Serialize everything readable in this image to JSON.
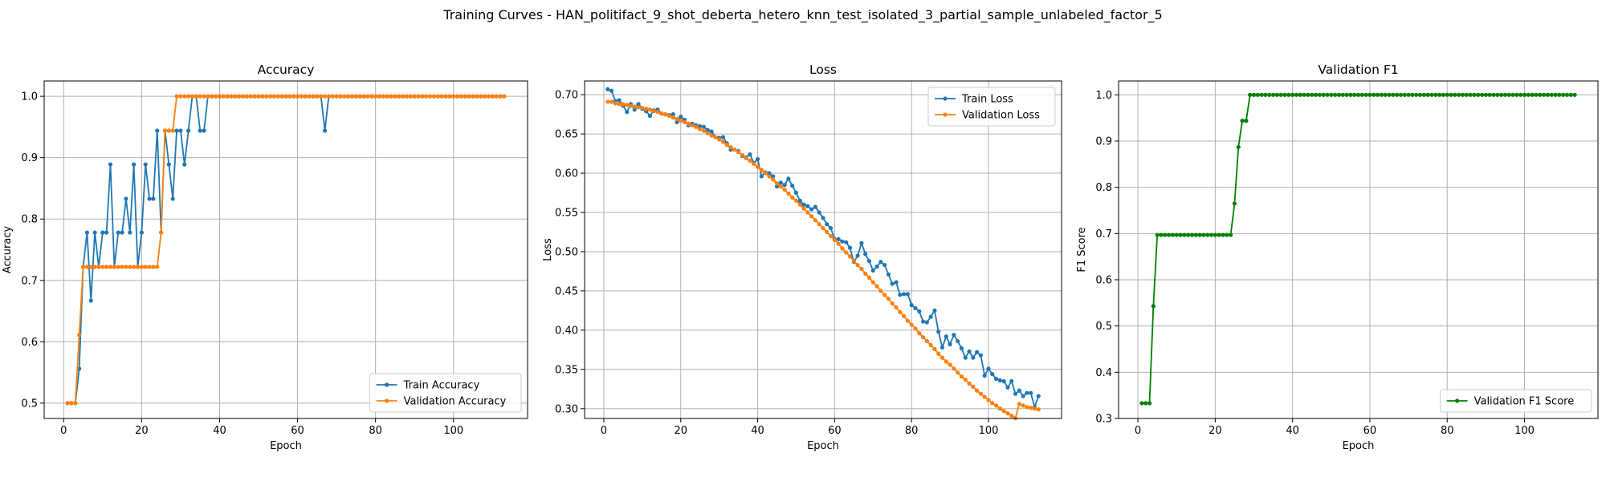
{
  "figure": {
    "suptitle": "Training Curves - HAN_politifact_9_shot_deberta_hetero_knn_test_isolated_3_partial_sample_unlabeled_factor_5"
  },
  "colors": {
    "train": "#1f77b4",
    "validation": "#ff7f0e",
    "f1": "#008000",
    "grid": "#b0b0b0"
  },
  "chart_data": [
    {
      "type": "line",
      "title": "Accuracy",
      "xlabel": "Epoch",
      "ylabel": "Accuracy",
      "xlim": [
        -5,
        119
      ],
      "ylim": [
        0.475,
        1.025
      ],
      "xticks": [
        0,
        20,
        40,
        60,
        80,
        100
      ],
      "yticks": [
        0.5,
        0.6,
        0.7,
        0.8,
        0.9,
        1.0
      ],
      "ytick_labels": [
        "0.5",
        "0.6",
        "0.7",
        "0.8",
        "0.9",
        "1.0"
      ],
      "grid": true,
      "legend_loc": "lower-right",
      "x_start": 1,
      "series": [
        {
          "name": "Train Accuracy",
          "color": "#1f77b4",
          "values": [
            0.5,
            0.5,
            0.5,
            0.556,
            0.722,
            0.778,
            0.667,
            0.778,
            0.722,
            0.778,
            0.778,
            0.889,
            0.722,
            0.778,
            0.778,
            0.833,
            0.778,
            0.889,
            0.722,
            0.778,
            0.889,
            0.833,
            0.833,
            0.944,
            0.778,
            0.944,
            0.889,
            0.833,
            0.944,
            0.944,
            0.889,
            0.944,
            1.0,
            1.0,
            0.944,
            0.944,
            1.0,
            1.0,
            1.0,
            1.0,
            1.0,
            1.0,
            1.0,
            1.0,
            1.0,
            1.0,
            1.0,
            1.0,
            1.0,
            1.0,
            1.0,
            1.0,
            1.0,
            1.0,
            1.0,
            1.0,
            1.0,
            1.0,
            1.0,
            1.0,
            1.0,
            1.0,
            1.0,
            1.0,
            1.0,
            1.0,
            0.944,
            1.0,
            1.0,
            1.0,
            1.0,
            1.0,
            1.0,
            1.0,
            1.0,
            1.0,
            1.0,
            1.0,
            1.0,
            1.0,
            1.0,
            1.0,
            1.0,
            1.0,
            1.0,
            1.0,
            1.0,
            1.0,
            1.0,
            1.0,
            1.0,
            1.0,
            1.0,
            1.0,
            1.0,
            1.0,
            1.0,
            1.0,
            1.0,
            1.0,
            1.0,
            1.0,
            1.0,
            1.0,
            1.0,
            1.0,
            1.0,
            1.0,
            1.0,
            1.0,
            1.0,
            1.0,
            1.0
          ]
        },
        {
          "name": "Validation Accuracy",
          "color": "#ff7f0e",
          "values": [
            0.5,
            0.5,
            0.5,
            0.611,
            0.722,
            0.722,
            0.722,
            0.722,
            0.722,
            0.722,
            0.722,
            0.722,
            0.722,
            0.722,
            0.722,
            0.722,
            0.722,
            0.722,
            0.722,
            0.722,
            0.722,
            0.722,
            0.722,
            0.722,
            0.778,
            0.944,
            0.944,
            0.944,
            1.0,
            1.0,
            1.0,
            1.0,
            1.0,
            1.0,
            1.0,
            1.0,
            1.0,
            1.0,
            1.0,
            1.0,
            1.0,
            1.0,
            1.0,
            1.0,
            1.0,
            1.0,
            1.0,
            1.0,
            1.0,
            1.0,
            1.0,
            1.0,
            1.0,
            1.0,
            1.0,
            1.0,
            1.0,
            1.0,
            1.0,
            1.0,
            1.0,
            1.0,
            1.0,
            1.0,
            1.0,
            1.0,
            1.0,
            1.0,
            1.0,
            1.0,
            1.0,
            1.0,
            1.0,
            1.0,
            1.0,
            1.0,
            1.0,
            1.0,
            1.0,
            1.0,
            1.0,
            1.0,
            1.0,
            1.0,
            1.0,
            1.0,
            1.0,
            1.0,
            1.0,
            1.0,
            1.0,
            1.0,
            1.0,
            1.0,
            1.0,
            1.0,
            1.0,
            1.0,
            1.0,
            1.0,
            1.0,
            1.0,
            1.0,
            1.0,
            1.0,
            1.0,
            1.0,
            1.0,
            1.0,
            1.0,
            1.0,
            1.0,
            1.0
          ]
        }
      ]
    },
    {
      "type": "line",
      "title": "Loss",
      "xlabel": "Epoch",
      "ylabel": "Loss",
      "xlim": [
        -5,
        119
      ],
      "ylim": [
        0.2875,
        0.7175
      ],
      "xticks": [
        0,
        20,
        40,
        60,
        80,
        100
      ],
      "yticks": [
        0.3,
        0.35,
        0.4,
        0.45,
        0.5,
        0.55,
        0.6,
        0.65,
        0.7
      ],
      "ytick_labels": [
        "0.30",
        "0.35",
        "0.40",
        "0.45",
        "0.50",
        "0.55",
        "0.60",
        "0.65",
        "0.70"
      ],
      "grid": true,
      "legend_loc": "upper-right",
      "x_start": 1,
      "series": [
        {
          "name": "Train Loss",
          "color": "#1f77b4",
          "values": [
            0.707,
            0.705,
            0.692,
            0.693,
            0.686,
            0.678,
            0.688,
            0.681,
            0.688,
            0.682,
            0.679,
            0.673,
            0.68,
            0.681,
            0.676,
            0.675,
            0.674,
            0.675,
            0.665,
            0.672,
            0.668,
            0.661,
            0.663,
            0.661,
            0.66,
            0.659,
            0.655,
            0.653,
            0.646,
            0.645,
            0.646,
            0.638,
            0.63,
            0.63,
            0.628,
            0.622,
            0.62,
            0.624,
            0.613,
            0.618,
            0.596,
            0.601,
            0.6,
            0.596,
            0.583,
            0.588,
            0.585,
            0.593,
            0.584,
            0.575,
            0.565,
            0.56,
            0.558,
            0.554,
            0.557,
            0.55,
            0.543,
            0.535,
            0.53,
            0.516,
            0.516,
            0.513,
            0.512,
            0.505,
            0.487,
            0.495,
            0.511,
            0.497,
            0.488,
            0.476,
            0.481,
            0.487,
            0.483,
            0.471,
            0.459,
            0.461,
            0.445,
            0.446,
            0.446,
            0.432,
            0.428,
            0.424,
            0.411,
            0.41,
            0.417,
            0.425,
            0.398,
            0.378,
            0.392,
            0.382,
            0.394,
            0.386,
            0.377,
            0.365,
            0.373,
            0.365,
            0.372,
            0.368,
            0.342,
            0.351,
            0.344,
            0.338,
            0.336,
            0.335,
            0.327,
            0.335,
            0.319,
            0.323,
            0.316,
            0.32,
            0.32,
            0.302,
            0.316
          ]
        },
        {
          "name": "Validation Loss",
          "color": "#ff7f0e",
          "values": [
            0.691,
            0.691,
            0.689,
            0.688,
            0.688,
            0.687,
            0.686,
            0.685,
            0.684,
            0.683,
            0.682,
            0.681,
            0.679,
            0.678,
            0.676,
            0.675,
            0.673,
            0.671,
            0.669,
            0.667,
            0.665,
            0.663,
            0.661,
            0.659,
            0.656,
            0.654,
            0.651,
            0.648,
            0.646,
            0.643,
            0.64,
            0.636,
            0.633,
            0.63,
            0.627,
            0.623,
            0.619,
            0.616,
            0.612,
            0.608,
            0.604,
            0.6,
            0.596,
            0.592,
            0.587,
            0.583,
            0.579,
            0.574,
            0.569,
            0.565,
            0.56,
            0.555,
            0.55,
            0.545,
            0.54,
            0.535,
            0.53,
            0.525,
            0.52,
            0.515,
            0.51,
            0.504,
            0.499,
            0.494,
            0.488,
            0.483,
            0.478,
            0.472,
            0.467,
            0.461,
            0.456,
            0.45,
            0.445,
            0.44,
            0.434,
            0.429,
            0.423,
            0.418,
            0.412,
            0.407,
            0.402,
            0.396,
            0.391,
            0.386,
            0.381,
            0.376,
            0.37,
            0.365,
            0.36,
            0.356,
            0.351,
            0.346,
            0.341,
            0.337,
            0.332,
            0.328,
            0.323,
            0.319,
            0.315,
            0.311,
            0.307,
            0.304,
            0.3,
            0.297,
            0.294,
            0.291,
            0.288,
            0.306,
            0.304,
            0.302,
            0.301,
            0.3,
            0.299
          ]
        }
      ]
    },
    {
      "type": "line",
      "title": "Validation F1",
      "xlabel": "Epoch",
      "ylabel": "F1 Score",
      "xlim": [
        -5,
        119
      ],
      "ylim": [
        0.3,
        1.03
      ],
      "xticks": [
        0,
        20,
        40,
        60,
        80,
        100
      ],
      "yticks": [
        0.3,
        0.4,
        0.5,
        0.6,
        0.7,
        0.8,
        0.9,
        1.0
      ],
      "ytick_labels": [
        "0.3",
        "0.4",
        "0.5",
        "0.6",
        "0.7",
        "0.8",
        "0.9",
        "1.0"
      ],
      "grid": true,
      "legend_loc": "lower-right",
      "x_start": 1,
      "series": [
        {
          "name": "Validation F1 Score",
          "color": "#008000",
          "values": [
            0.333,
            0.333,
            0.333,
            0.543,
            0.697,
            0.697,
            0.697,
            0.697,
            0.697,
            0.697,
            0.697,
            0.697,
            0.697,
            0.697,
            0.697,
            0.697,
            0.697,
            0.697,
            0.697,
            0.697,
            0.697,
            0.697,
            0.697,
            0.697,
            0.765,
            0.887,
            0.944,
            0.944,
            1.0,
            1.0,
            1.0,
            1.0,
            1.0,
            1.0,
            1.0,
            1.0,
            1.0,
            1.0,
            1.0,
            1.0,
            1.0,
            1.0,
            1.0,
            1.0,
            1.0,
            1.0,
            1.0,
            1.0,
            1.0,
            1.0,
            1.0,
            1.0,
            1.0,
            1.0,
            1.0,
            1.0,
            1.0,
            1.0,
            1.0,
            1.0,
            1.0,
            1.0,
            1.0,
            1.0,
            1.0,
            1.0,
            1.0,
            1.0,
            1.0,
            1.0,
            1.0,
            1.0,
            1.0,
            1.0,
            1.0,
            1.0,
            1.0,
            1.0,
            1.0,
            1.0,
            1.0,
            1.0,
            1.0,
            1.0,
            1.0,
            1.0,
            1.0,
            1.0,
            1.0,
            1.0,
            1.0,
            1.0,
            1.0,
            1.0,
            1.0,
            1.0,
            1.0,
            1.0,
            1.0,
            1.0,
            1.0,
            1.0,
            1.0,
            1.0,
            1.0,
            1.0,
            1.0,
            1.0,
            1.0,
            1.0,
            1.0,
            1.0,
            1.0
          ]
        }
      ]
    }
  ]
}
